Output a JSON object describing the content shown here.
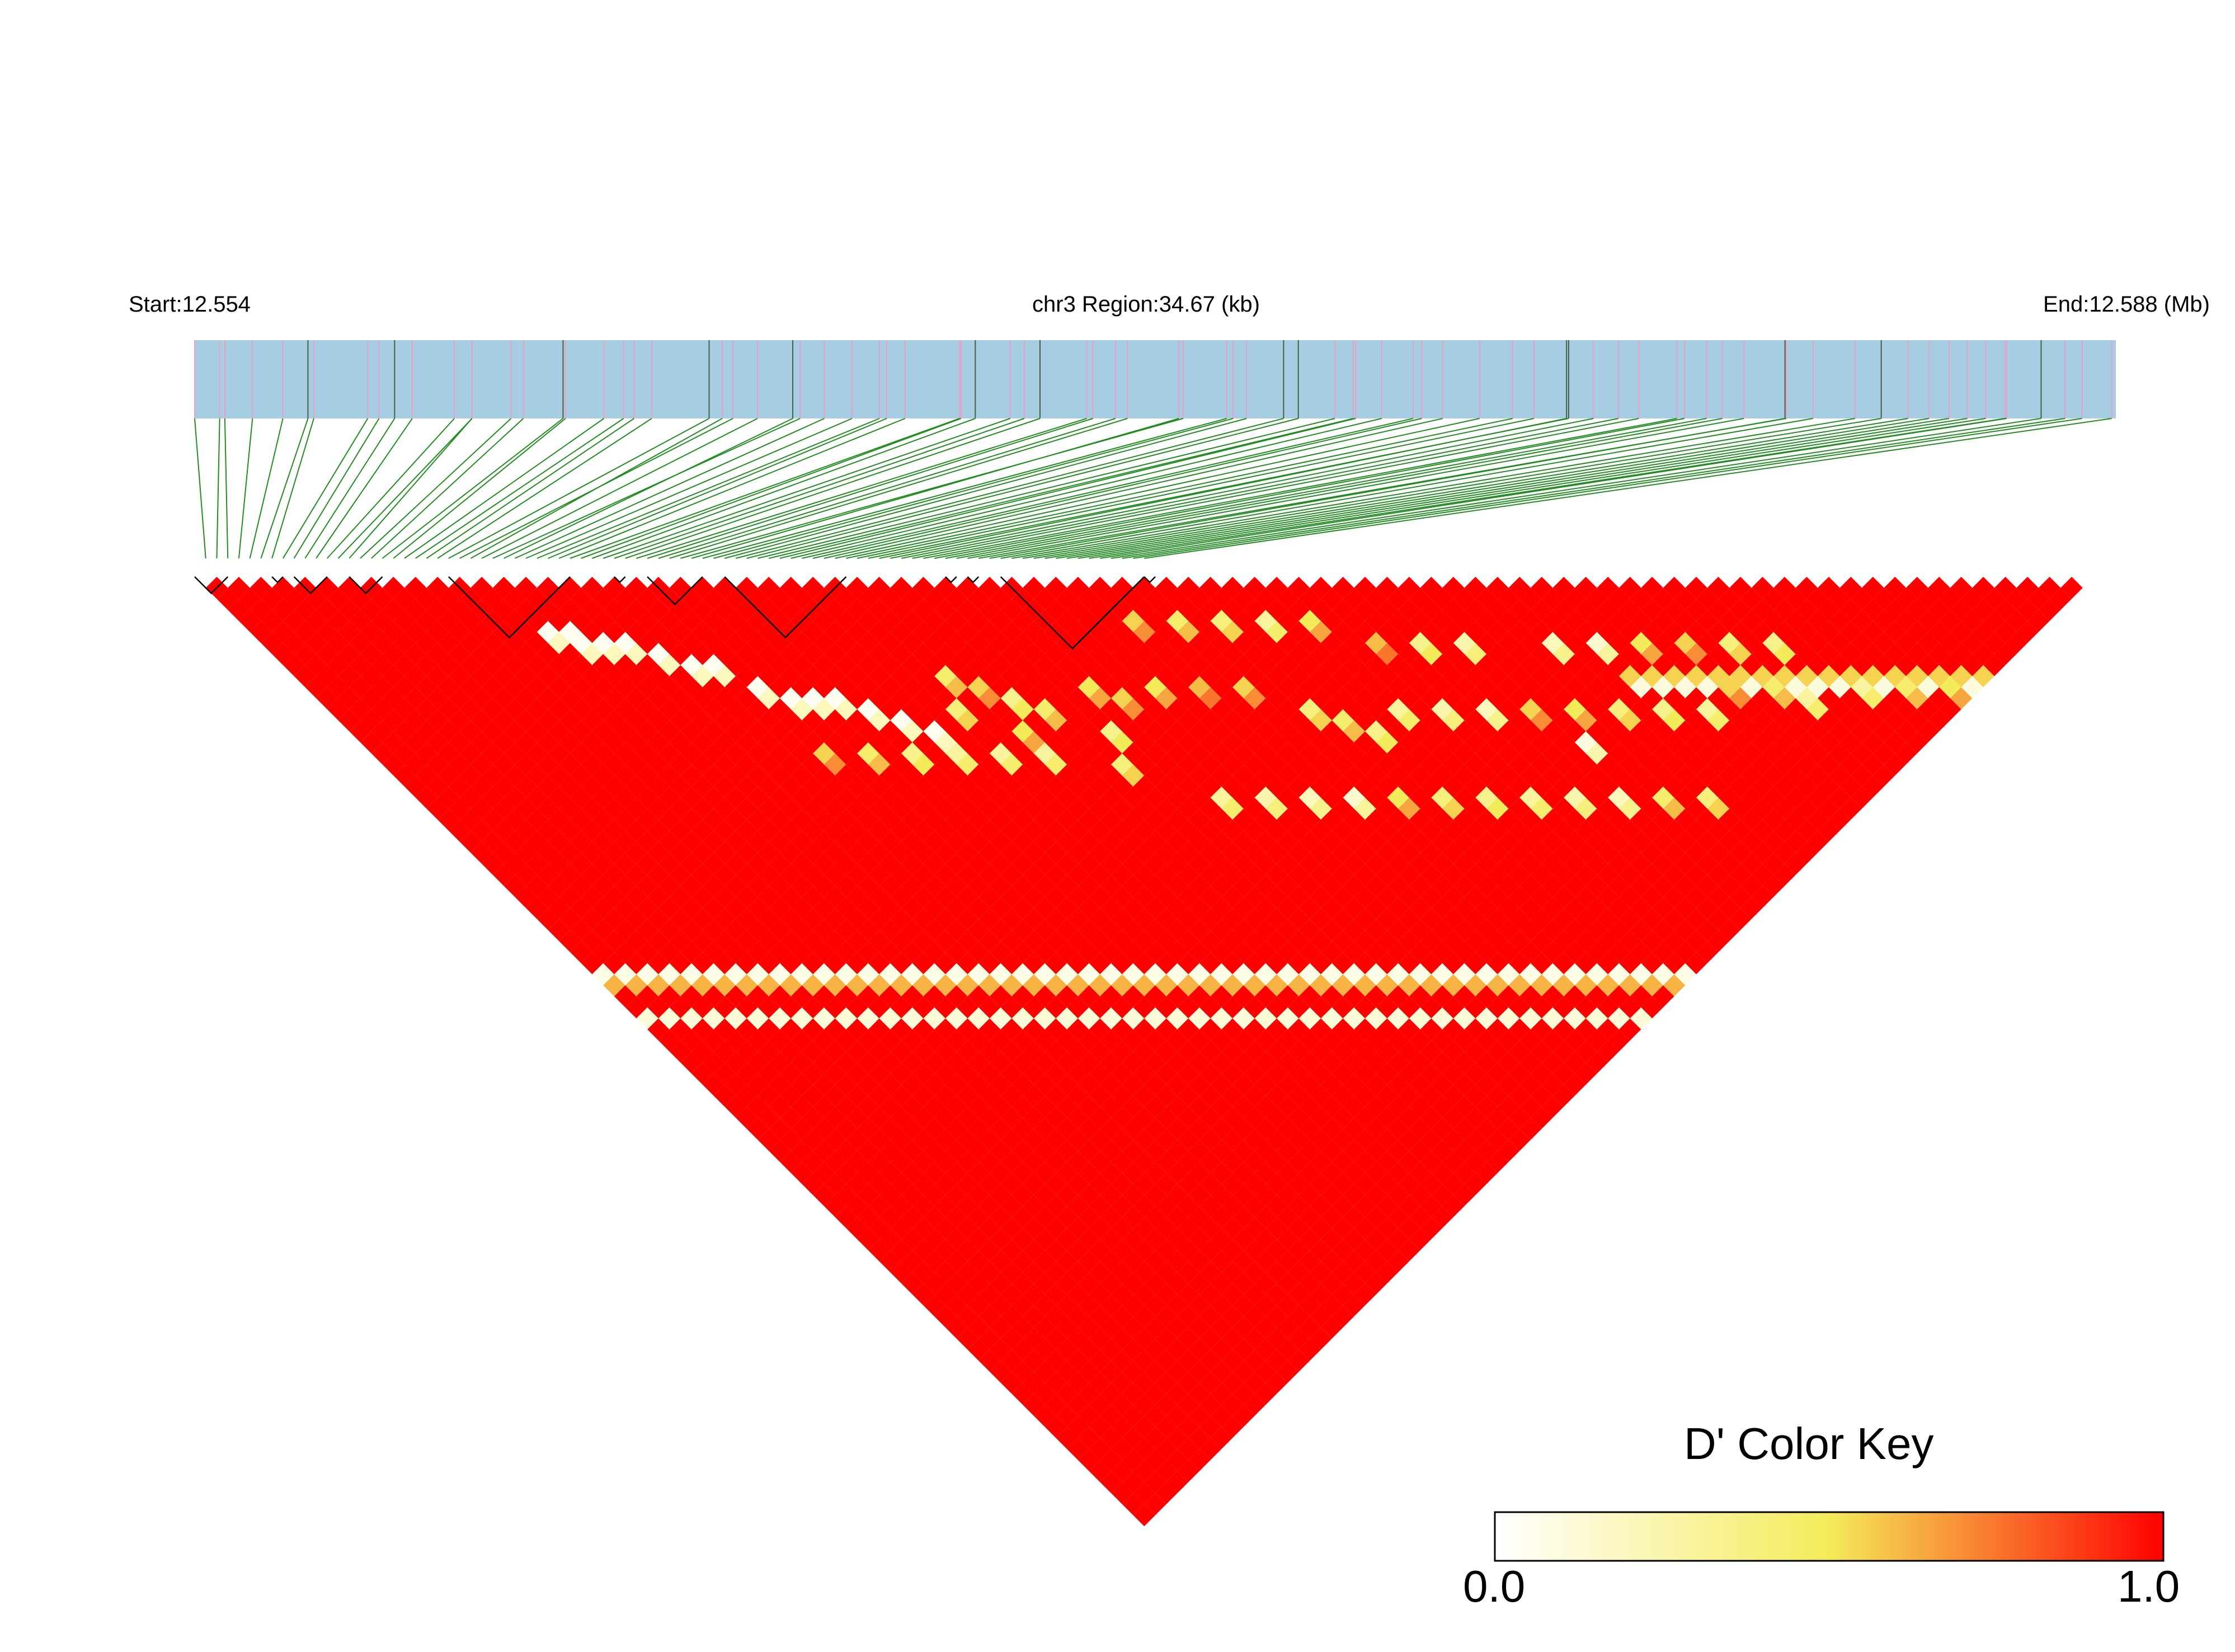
{
  "header": {
    "start_label": "Start:12.554",
    "region_label": "chr3 Region:34.67 (kb)",
    "end_label": "End:12.588 (Mb)"
  },
  "snp_track": {
    "snp_count": 86,
    "colors": {
      "bar": "#a6cde2",
      "tick_default": "#e8a0c8",
      "tick_dark": "#406040",
      "connector": "#228b22"
    }
  },
  "ld_matrix": {
    "measure": "D'",
    "block_spans": [
      [
        0,
        3
      ],
      [
        7,
        8
      ],
      [
        9,
        12
      ],
      [
        14,
        17
      ],
      [
        23,
        34
      ],
      [
        38,
        39
      ],
      [
        41,
        46
      ],
      [
        48,
        59
      ],
      [
        68,
        69
      ],
      [
        70,
        71
      ],
      [
        73,
        86
      ],
      [
        86,
        87
      ]
    ],
    "low_ld_diagonals": [
      {
        "lag": 36,
        "from": 0,
        "to": 50,
        "value": 0.08
      },
      {
        "lag": 37,
        "from": 0,
        "to": 49,
        "value": 0.62
      },
      {
        "lag": 40,
        "from": 0,
        "to": 46,
        "value": 0.12
      },
      {
        "lag": 10,
        "from": 60,
        "to": 76,
        "value": 0.1
      },
      {
        "lag": 9,
        "from": 60,
        "to": 77,
        "value": 0.55
      }
    ],
    "low_ld_cells": [
      [
        13,
        18,
        0.05
      ],
      [
        14,
        19,
        0.05
      ],
      [
        14,
        20,
        0.05
      ],
      [
        15,
        21,
        0.05
      ],
      [
        16,
        22,
        0.05
      ],
      [
        17,
        24,
        0.05
      ],
      [
        18,
        26,
        0.05
      ],
      [
        19,
        27,
        0.05
      ],
      [
        20,
        30,
        0.05
      ],
      [
        21,
        32,
        0.05
      ],
      [
        22,
        33,
        0.05
      ],
      [
        23,
        34,
        0.05
      ],
      [
        24,
        36,
        0.05
      ],
      [
        25,
        38,
        0.05
      ],
      [
        26,
        40,
        0.05
      ],
      [
        29,
        38,
        0.45
      ],
      [
        30,
        40,
        0.55
      ],
      [
        31,
        42,
        0.35
      ],
      [
        32,
        44,
        0.45
      ],
      [
        28,
        44,
        0.3
      ],
      [
        30,
        46,
        0.3
      ],
      [
        33,
        50,
        0.4
      ],
      [
        35,
        45,
        0.5
      ],
      [
        36,
        47,
        0.55
      ],
      [
        38,
        48,
        0.5
      ],
      [
        40,
        50,
        0.6
      ],
      [
        42,
        52,
        0.55
      ],
      [
        44,
        56,
        0.4
      ],
      [
        45,
        58,
        0.45
      ],
      [
        46,
        60,
        0.35
      ],
      [
        48,
        60,
        0.3
      ],
      [
        50,
        62,
        0.25
      ],
      [
        52,
        64,
        0.2
      ],
      [
        54,
        66,
        0.55
      ],
      [
        55,
        70,
        0.1
      ],
      [
        56,
        68,
        0.5
      ],
      [
        58,
        70,
        0.4
      ],
      [
        60,
        72,
        0.35
      ],
      [
        62,
        74,
        0.3
      ],
      [
        64,
        74,
        0.55
      ],
      [
        66,
        76,
        0.45
      ],
      [
        67,
        78,
        0.3
      ],
      [
        52,
        58,
        0.35
      ],
      [
        54,
        60,
        0.25
      ],
      [
        58,
        64,
        0.2
      ],
      [
        60,
        66,
        0.15
      ],
      [
        62,
        68,
        0.5
      ],
      [
        64,
        70,
        0.55
      ],
      [
        66,
        72,
        0.4
      ],
      [
        68,
        74,
        0.35
      ],
      [
        70,
        80,
        0.3
      ],
      [
        72,
        82,
        0.45
      ],
      [
        74,
        84,
        0.5
      ],
      [
        50,
        56,
        0.6
      ],
      [
        40,
        44,
        0.55
      ],
      [
        42,
        46,
        0.45
      ],
      [
        44,
        48,
        0.4
      ],
      [
        46,
        50,
        0.3
      ],
      [
        48,
        52,
        0.5
      ],
      [
        34,
        48,
        0.35
      ],
      [
        20,
        36,
        0.55
      ],
      [
        22,
        38,
        0.45
      ],
      [
        24,
        40,
        0.35
      ],
      [
        26,
        42,
        0.3
      ],
      [
        28,
        40,
        0.4
      ],
      [
        30,
        44,
        0.5
      ],
      [
        36,
        56,
        0.3
      ],
      [
        38,
        58,
        0.25
      ],
      [
        40,
        60,
        0.2
      ],
      [
        42,
        62,
        0.15
      ],
      [
        44,
        64,
        0.5
      ],
      [
        46,
        66,
        0.4
      ],
      [
        48,
        68,
        0.35
      ],
      [
        50,
        70,
        0.3
      ],
      [
        52,
        72,
        0.25
      ],
      [
        54,
        74,
        0.2
      ],
      [
        56,
        76,
        0.45
      ],
      [
        58,
        78,
        0.4
      ]
    ]
  },
  "color_key": {
    "title": "D' Color Key",
    "min_label": "0.0",
    "max_label": "1.0",
    "min": 0,
    "max": 1,
    "gradient_stops": [
      "#ffffff",
      "#f4eb5a",
      "#ff0000"
    ]
  }
}
